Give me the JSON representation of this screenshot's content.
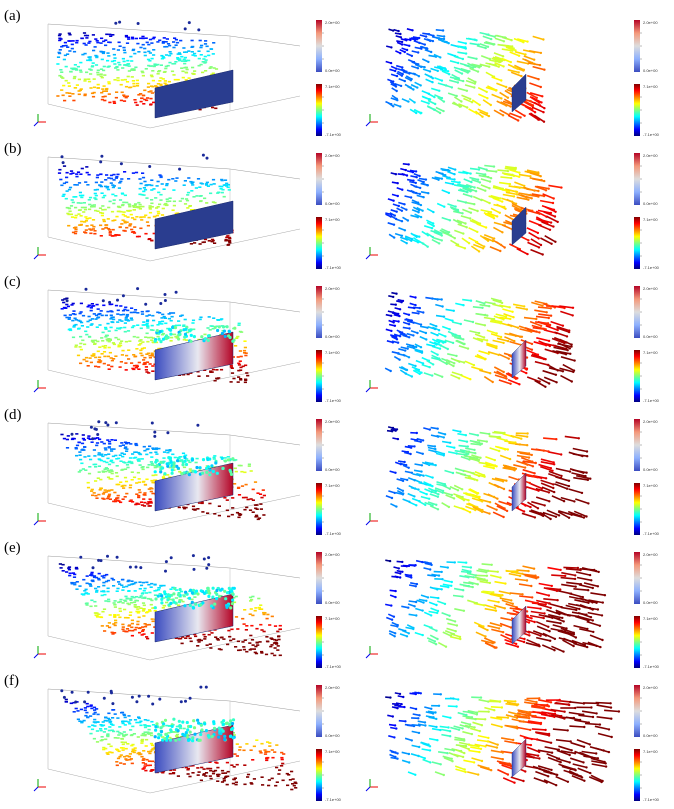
{
  "panels": [
    {
      "label": "(a)",
      "bar1_top": "2.0e+00",
      "bar1_bottom": "0.0e+00",
      "bar2_top": "7.1e+00",
      "bar2_bottom": "-7.1e+00",
      "bar3_top": "2.0e+00",
      "bar3_bottom": "0.0e+00",
      "bar4_top": "7.1e+00",
      "bar4_bottom": "-7.1e+00"
    },
    {
      "label": "(b)",
      "bar1_top": "2.0e+00",
      "bar1_bottom": "0.0e+00",
      "bar2_top": "7.1e+00",
      "bar2_bottom": "-7.1e+00",
      "bar3_top": "2.0e+00",
      "bar3_bottom": "0.0e+00",
      "bar4_top": "7.1e+00",
      "bar4_bottom": "-7.1e+00"
    },
    {
      "label": "(c)",
      "bar1_top": "2.0e+00",
      "bar1_bottom": "0.0e+00",
      "bar2_top": "7.1e+00",
      "bar2_bottom": "-7.1e+00",
      "bar3_top": "2.0e+00",
      "bar3_bottom": "0.0e+00",
      "bar4_top": "7.1e+00",
      "bar4_bottom": "-7.1e+00"
    },
    {
      "label": "(d)",
      "bar1_top": "2.0e+00",
      "bar1_bottom": "0.0e+00",
      "bar2_top": "7.1e+00",
      "bar2_bottom": "-7.1e+00",
      "bar3_top": "2.0e+00",
      "bar3_bottom": "0.0e+00",
      "bar4_top": "7.1e+00",
      "bar4_bottom": "-7.1e+00"
    },
    {
      "label": "(e)",
      "bar1_top": "2.0e+00",
      "bar1_bottom": "0.0e+00",
      "bar2_top": "7.1e+00",
      "bar2_bottom": "-7.1e+00",
      "bar3_top": "2.0e+00",
      "bar3_bottom": "0.0e+00",
      "bar4_top": "7.1e+00",
      "bar4_bottom": "-7.1e+00"
    },
    {
      "label": "(f)",
      "bar1_top": "2.0e+00",
      "bar1_bottom": "0.0e+00",
      "bar2_top": "7.1e+00",
      "bar2_bottom": "-7.1e+00",
      "bar3_top": "2.0e+00",
      "bar3_bottom": "0.0e+00",
      "bar4_top": "7.1e+00",
      "bar4_bottom": "-7.1e+00"
    }
  ],
  "colors": {
    "jet": [
      "#00007f",
      "#0000ff",
      "#007fff",
      "#00ffff",
      "#7fff7f",
      "#ffff00",
      "#ff7f00",
      "#ff0000",
      "#7f0000"
    ],
    "coolwarm": [
      "#3b4cc0",
      "#8db0fe",
      "#dddddd",
      "#f4987a",
      "#b40426"
    ],
    "wall": "#2a3d8f"
  }
}
